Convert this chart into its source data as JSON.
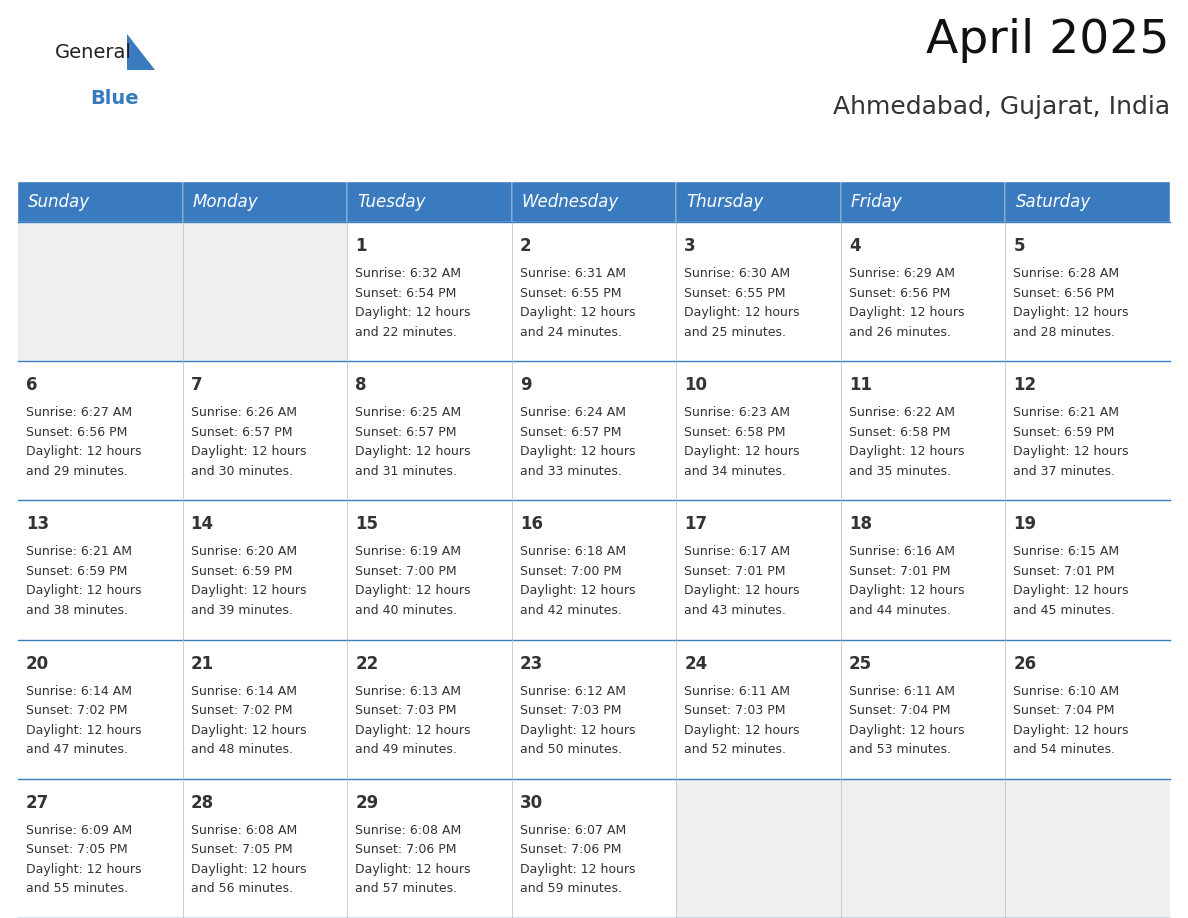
{
  "title": "April 2025",
  "subtitle": "Ahmedabad, Gujarat, India",
  "days_of_week": [
    "Sunday",
    "Monday",
    "Tuesday",
    "Wednesday",
    "Thursday",
    "Friday",
    "Saturday"
  ],
  "header_bg_color": "#3a7abf",
  "header_text_color": "#ffffff",
  "empty_cell_bg": "#efefef",
  "filled_cell_bg": "#ffffff",
  "cell_border_color": "#3a7abf",
  "grid_line_color": "#bbbbbb",
  "text_color": "#333333",
  "title_fontsize": 34,
  "subtitle_fontsize": 18,
  "header_fontsize": 12,
  "day_num_fontsize": 12,
  "cell_text_fontsize": 9,
  "logo_general_color": "#222222",
  "logo_blue_color": "#3a7abf",
  "logo_triangle_color": "#3a7abf",
  "calendar_data": [
    [
      {
        "day": "",
        "sunrise": "",
        "sunset": "",
        "daylight": ""
      },
      {
        "day": "",
        "sunrise": "",
        "sunset": "",
        "daylight": ""
      },
      {
        "day": "1",
        "sunrise": "6:32 AM",
        "sunset": "6:54 PM",
        "daylight": "12 hours and 22 minutes."
      },
      {
        "day": "2",
        "sunrise": "6:31 AM",
        "sunset": "6:55 PM",
        "daylight": "12 hours and 24 minutes."
      },
      {
        "day": "3",
        "sunrise": "6:30 AM",
        "sunset": "6:55 PM",
        "daylight": "12 hours and 25 minutes."
      },
      {
        "day": "4",
        "sunrise": "6:29 AM",
        "sunset": "6:56 PM",
        "daylight": "12 hours and 26 minutes."
      },
      {
        "day": "5",
        "sunrise": "6:28 AM",
        "sunset": "6:56 PM",
        "daylight": "12 hours and 28 minutes."
      }
    ],
    [
      {
        "day": "6",
        "sunrise": "6:27 AM",
        "sunset": "6:56 PM",
        "daylight": "12 hours and 29 minutes."
      },
      {
        "day": "7",
        "sunrise": "6:26 AM",
        "sunset": "6:57 PM",
        "daylight": "12 hours and 30 minutes."
      },
      {
        "day": "8",
        "sunrise": "6:25 AM",
        "sunset": "6:57 PM",
        "daylight": "12 hours and 31 minutes."
      },
      {
        "day": "9",
        "sunrise": "6:24 AM",
        "sunset": "6:57 PM",
        "daylight": "12 hours and 33 minutes."
      },
      {
        "day": "10",
        "sunrise": "6:23 AM",
        "sunset": "6:58 PM",
        "daylight": "12 hours and 34 minutes."
      },
      {
        "day": "11",
        "sunrise": "6:22 AM",
        "sunset": "6:58 PM",
        "daylight": "12 hours and 35 minutes."
      },
      {
        "day": "12",
        "sunrise": "6:21 AM",
        "sunset": "6:59 PM",
        "daylight": "12 hours and 37 minutes."
      }
    ],
    [
      {
        "day": "13",
        "sunrise": "6:21 AM",
        "sunset": "6:59 PM",
        "daylight": "12 hours and 38 minutes."
      },
      {
        "day": "14",
        "sunrise": "6:20 AM",
        "sunset": "6:59 PM",
        "daylight": "12 hours and 39 minutes."
      },
      {
        "day": "15",
        "sunrise": "6:19 AM",
        "sunset": "7:00 PM",
        "daylight": "12 hours and 40 minutes."
      },
      {
        "day": "16",
        "sunrise": "6:18 AM",
        "sunset": "7:00 PM",
        "daylight": "12 hours and 42 minutes."
      },
      {
        "day": "17",
        "sunrise": "6:17 AM",
        "sunset": "7:01 PM",
        "daylight": "12 hours and 43 minutes."
      },
      {
        "day": "18",
        "sunrise": "6:16 AM",
        "sunset": "7:01 PM",
        "daylight": "12 hours and 44 minutes."
      },
      {
        "day": "19",
        "sunrise": "6:15 AM",
        "sunset": "7:01 PM",
        "daylight": "12 hours and 45 minutes."
      }
    ],
    [
      {
        "day": "20",
        "sunrise": "6:14 AM",
        "sunset": "7:02 PM",
        "daylight": "12 hours and 47 minutes."
      },
      {
        "day": "21",
        "sunrise": "6:14 AM",
        "sunset": "7:02 PM",
        "daylight": "12 hours and 48 minutes."
      },
      {
        "day": "22",
        "sunrise": "6:13 AM",
        "sunset": "7:03 PM",
        "daylight": "12 hours and 49 minutes."
      },
      {
        "day": "23",
        "sunrise": "6:12 AM",
        "sunset": "7:03 PM",
        "daylight": "12 hours and 50 minutes."
      },
      {
        "day": "24",
        "sunrise": "6:11 AM",
        "sunset": "7:03 PM",
        "daylight": "12 hours and 52 minutes."
      },
      {
        "day": "25",
        "sunrise": "6:11 AM",
        "sunset": "7:04 PM",
        "daylight": "12 hours and 53 minutes."
      },
      {
        "day": "26",
        "sunrise": "6:10 AM",
        "sunset": "7:04 PM",
        "daylight": "12 hours and 54 minutes."
      }
    ],
    [
      {
        "day": "27",
        "sunrise": "6:09 AM",
        "sunset": "7:05 PM",
        "daylight": "12 hours and 55 minutes."
      },
      {
        "day": "28",
        "sunrise": "6:08 AM",
        "sunset": "7:05 PM",
        "daylight": "12 hours and 56 minutes."
      },
      {
        "day": "29",
        "sunrise": "6:08 AM",
        "sunset": "7:06 PM",
        "daylight": "12 hours and 57 minutes."
      },
      {
        "day": "30",
        "sunrise": "6:07 AM",
        "sunset": "7:06 PM",
        "daylight": "12 hours and 59 minutes."
      },
      {
        "day": "",
        "sunrise": "",
        "sunset": "",
        "daylight": ""
      },
      {
        "day": "",
        "sunrise": "",
        "sunset": "",
        "daylight": ""
      },
      {
        "day": "",
        "sunrise": "",
        "sunset": "",
        "daylight": ""
      }
    ]
  ]
}
